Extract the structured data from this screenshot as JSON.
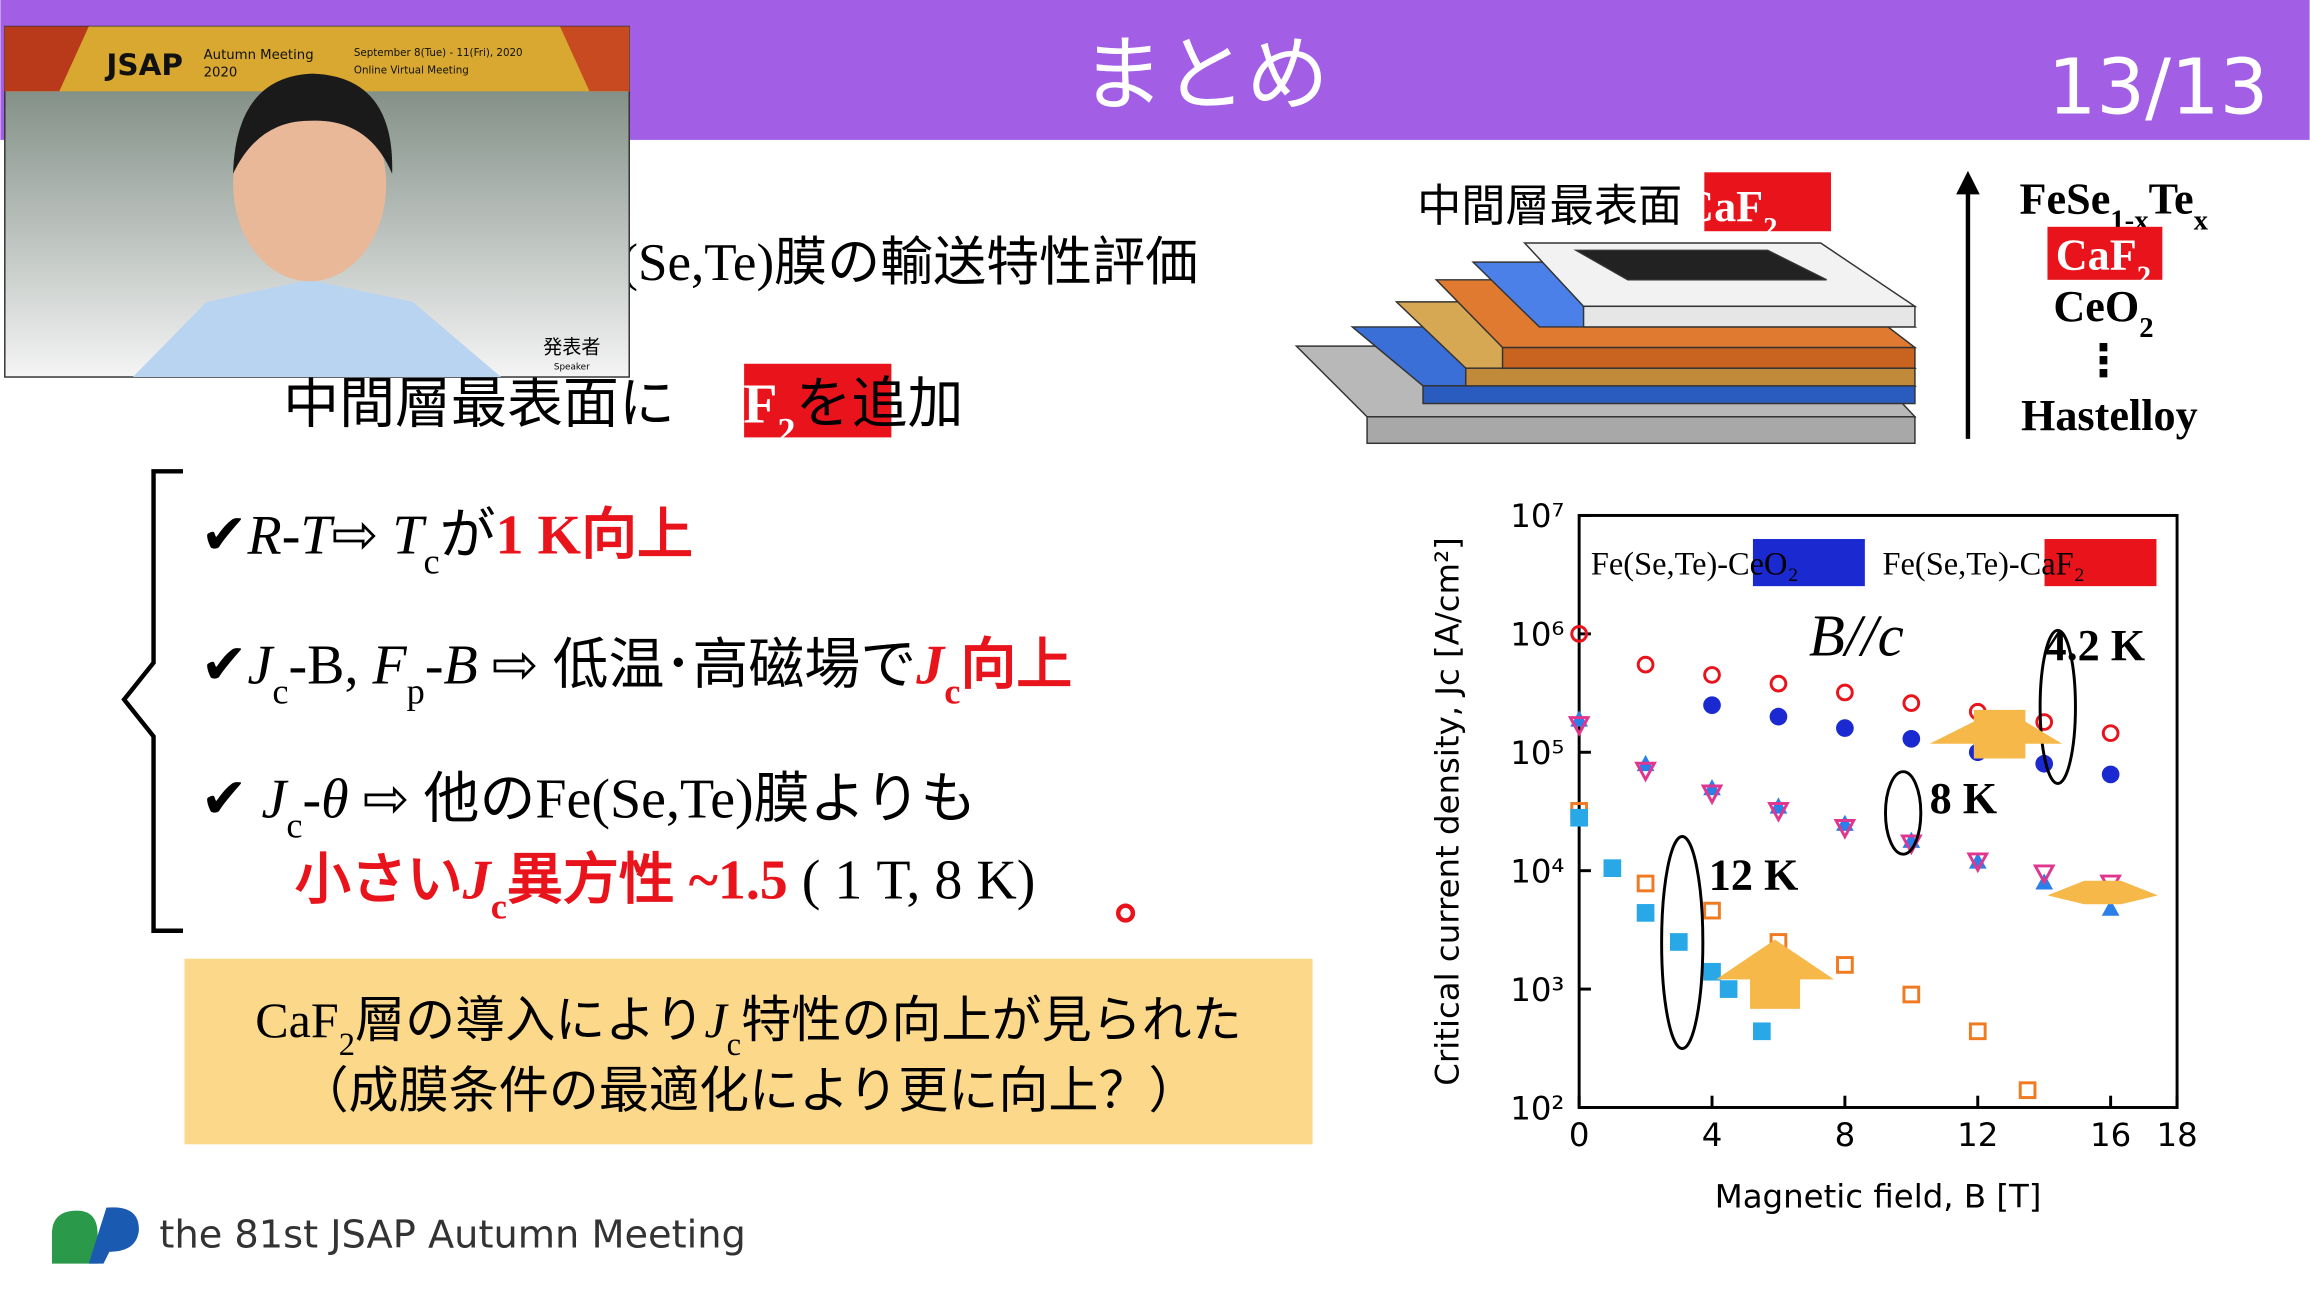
{
  "header": {
    "title": "まとめ",
    "page": "13/13"
  },
  "video": {
    "banner_title": "JSAP",
    "banner_subtitle": "Autumn Meeting",
    "banner_year": "2020",
    "dates": "September 8(Tue) - 11(Fri), 2020",
    "venue": "Online Virtual Meeting",
    "role": "発表者",
    "role_en": "Speaker"
  },
  "body": {
    "line1": "e(Se,Te)膜の輸送特性評価",
    "line2": [
      "中間層最表面に",
      "CaF",
      "2",
      "を追加"
    ],
    "bullets": [
      [
        "✔",
        "R-T",
        "⇨ ",
        "T",
        "c",
        "が",
        "1 K向上"
      ],
      [
        "✔",
        "J",
        "c",
        "-B, ",
        "F",
        "p",
        "-B",
        " ⇨ 低温･高磁場で",
        "J",
        "c",
        "向上"
      ],
      [
        "✔ ",
        "J",
        "c",
        "-θ",
        " ⇨ 他のFe(Se,Te)膜よりも"
      ],
      [
        "小さい",
        "J",
        "c",
        "異方性 ~1.5",
        " ( 1 T, 8 K)"
      ]
    ],
    "conclusion": [
      [
        "CaF",
        "2",
        "層の導入により",
        "J",
        "c",
        "特性の向上が見られた"
      ],
      "（成膜条件の最適化により更に向上？）"
    ]
  },
  "diagram": {
    "title": [
      "中間層最表面",
      "CaF",
      "2"
    ],
    "stack": [
      [
        "FeSe",
        "1-x",
        "Te",
        "x"
      ],
      [
        "CaF",
        "2"
      ],
      [
        "CeO",
        "2"
      ],
      "⋮",
      "Hastelloy"
    ]
  },
  "footer": "the 81st JSAP Autumn Meeting",
  "chart_data": {
    "type": "scatter",
    "log_y": true,
    "x_label": "Magnetic field, B [T]",
    "y_label": "Critical current density, Jc [A/cm²]",
    "xlim": [
      0,
      18
    ],
    "xticks": [
      0,
      4,
      8,
      12,
      16,
      18
    ],
    "ylim": [
      100,
      10000000
    ],
    "yticks": [
      {
        "value": 100,
        "label": "10²"
      },
      {
        "value": 1000,
        "label": "10³"
      },
      {
        "value": 10000,
        "label": "10⁴"
      },
      {
        "value": 100000,
        "label": "10⁵"
      },
      {
        "value": 1000000,
        "label": "10⁶"
      },
      {
        "value": 10000000,
        "label": "10⁷"
      }
    ],
    "legend": [
      {
        "text": "Fe(Se,Te)-CeO₂",
        "color": "#1a2ad0"
      },
      {
        "text": "Fe(Se,Te)-CaF₂",
        "color": "#e8131b"
      }
    ],
    "annotations": [
      "B//c",
      "4.2 K",
      "8 K",
      "12 K"
    ],
    "series": [
      {
        "color": "#e8131b",
        "marker": "circle-open",
        "x": [
          0,
          2,
          4,
          6,
          8,
          10,
          12,
          14,
          16
        ],
        "values": [
          1000000,
          550000,
          450000,
          380000,
          320000,
          260000,
          220000,
          180000,
          145000
        ]
      },
      {
        "color": "#1a2ad0",
        "marker": "circle",
        "x": [
          4,
          6,
          8,
          10,
          12,
          14,
          16
        ],
        "values": [
          250000,
          200000,
          160000,
          130000,
          100000,
          80000,
          65000
        ]
      },
      {
        "color": "#2a7fe8",
        "marker": "triangle",
        "x": [
          0,
          2,
          4,
          6,
          8,
          10,
          12,
          14,
          16
        ],
        "values": [
          190000,
          80000,
          50000,
          35000,
          25000,
          18000,
          12000,
          8000,
          4800
        ]
      },
      {
        "color": "#e0368f",
        "marker": "triangle-down-open",
        "x": [
          0,
          2,
          4,
          6,
          8,
          10,
          12,
          14,
          16
        ],
        "values": [
          170000,
          70000,
          45000,
          32000,
          23000,
          17000,
          12000,
          9500,
          7800
        ]
      },
      {
        "color": "#f07a22",
        "marker": "square-open",
        "x": [
          0,
          2,
          4,
          6,
          8,
          10,
          12,
          13.5
        ],
        "values": [
          32000,
          7800,
          4600,
          2500,
          1600,
          900,
          440,
          140
        ]
      },
      {
        "color": "#29a8e8",
        "marker": "square",
        "x": [
          0,
          1,
          2,
          3,
          4,
          4.5,
          5.5
        ],
        "values": [
          28000,
          10500,
          4400,
          2500,
          1400,
          1000,
          440
        ]
      }
    ]
  }
}
